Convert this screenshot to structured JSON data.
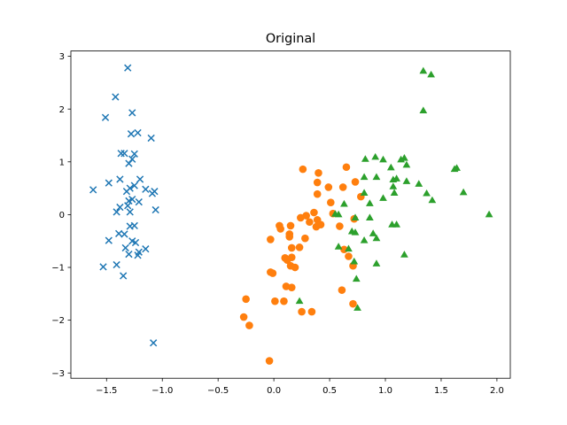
{
  "chart_data": {
    "type": "scatter",
    "title": "Original",
    "xlabel": "",
    "ylabel": "",
    "xlim": [
      -1.82,
      2.12
    ],
    "ylim": [
      -3.1,
      3.1
    ],
    "xticks": [
      -1.5,
      -1.0,
      -0.5,
      0.0,
      0.5,
      1.0,
      1.5,
      2.0
    ],
    "xtick_labels": [
      "−1.5",
      "−1.0",
      "−0.5",
      "0.0",
      "0.5",
      "1.0",
      "1.5",
      "2.0"
    ],
    "yticks": [
      -3,
      -2,
      -1,
      0,
      1,
      2,
      3
    ],
    "ytick_labels": [
      "−3",
      "−2",
      "−1",
      "0",
      "1",
      "2",
      "3"
    ],
    "grid": false,
    "series": [
      {
        "marker": "x",
        "color": "#1f77b4",
        "points": [
          [
            -1.31,
            2.78
          ],
          [
            -1.42,
            2.23
          ],
          [
            -1.27,
            1.93
          ],
          [
            -1.51,
            1.84
          ],
          [
            -1.28,
            1.53
          ],
          [
            -1.22,
            1.55
          ],
          [
            -1.1,
            1.45
          ],
          [
            -1.37,
            1.16
          ],
          [
            -1.34,
            1.16
          ],
          [
            -1.25,
            1.15
          ],
          [
            -1.27,
            1.05
          ],
          [
            -1.3,
            0.97
          ],
          [
            -1.2,
            0.67
          ],
          [
            -1.38,
            0.67
          ],
          [
            -1.48,
            0.6
          ],
          [
            -1.25,
            0.55
          ],
          [
            -1.29,
            0.5
          ],
          [
            -1.15,
            0.48
          ],
          [
            -1.32,
            0.44
          ],
          [
            -1.62,
            0.47
          ],
          [
            -1.07,
            0.44
          ],
          [
            -1.09,
            0.4
          ],
          [
            -1.27,
            0.29
          ],
          [
            -1.3,
            0.26
          ],
          [
            -1.21,
            0.24
          ],
          [
            -1.38,
            0.14
          ],
          [
            -1.31,
            0.17
          ],
          [
            -1.29,
            0.05
          ],
          [
            -1.41,
            0.05
          ],
          [
            -1.06,
            0.09
          ],
          [
            -1.25,
            -0.21
          ],
          [
            -1.29,
            -0.22
          ],
          [
            -1.39,
            -0.36
          ],
          [
            -1.34,
            -0.37
          ],
          [
            -1.48,
            -0.49
          ],
          [
            -1.27,
            -0.5
          ],
          [
            -1.24,
            -0.53
          ],
          [
            -1.33,
            -0.63
          ],
          [
            -1.15,
            -0.65
          ],
          [
            -1.21,
            -0.71
          ],
          [
            -1.3,
            -0.75
          ],
          [
            -1.22,
            -0.77
          ],
          [
            -1.41,
            -0.95
          ],
          [
            -1.53,
            -0.99
          ],
          [
            -1.35,
            -1.16
          ],
          [
            -1.08,
            -2.43
          ]
        ]
      },
      {
        "marker": "o",
        "color": "#ff7f0e",
        "points": [
          [
            0.65,
            0.9
          ],
          [
            0.26,
            0.86
          ],
          [
            0.4,
            0.79
          ],
          [
            0.39,
            0.61
          ],
          [
            0.49,
            0.52
          ],
          [
            0.62,
            0.52
          ],
          [
            0.73,
            0.62
          ],
          [
            0.39,
            0.39
          ],
          [
            0.78,
            0.34
          ],
          [
            0.51,
            0.23
          ],
          [
            0.36,
            0.04
          ],
          [
            0.29,
            -0.02
          ],
          [
            0.53,
            0.02
          ],
          [
            0.72,
            -0.08
          ],
          [
            0.24,
            -0.06
          ],
          [
            0.39,
            -0.1
          ],
          [
            0.32,
            -0.14
          ],
          [
            0.05,
            -0.21
          ],
          [
            0.15,
            -0.21
          ],
          [
            0.38,
            -0.23
          ],
          [
            0.42,
            -0.19
          ],
          [
            0.59,
            -0.22
          ],
          [
            0.06,
            -0.27
          ],
          [
            0.14,
            -0.37
          ],
          [
            0.28,
            -0.45
          ],
          [
            0.14,
            -0.42
          ],
          [
            -0.03,
            -0.47
          ],
          [
            0.16,
            -0.63
          ],
          [
            0.23,
            -0.62
          ],
          [
            0.63,
            -0.66
          ],
          [
            0.67,
            -0.79
          ],
          [
            0.16,
            -0.81
          ],
          [
            0.1,
            -0.82
          ],
          [
            0.12,
            -0.86
          ],
          [
            0.71,
            -0.97
          ],
          [
            0.15,
            -0.97
          ],
          [
            0.19,
            -1.0
          ],
          [
            -0.01,
            -1.11
          ],
          [
            -0.03,
            -1.09
          ],
          [
            0.11,
            -1.36
          ],
          [
            0.16,
            -1.38
          ],
          [
            0.61,
            -1.43
          ],
          [
            -0.25,
            -1.6
          ],
          [
            0.01,
            -1.64
          ],
          [
            0.09,
            -1.64
          ],
          [
            0.71,
            -1.69
          ],
          [
            -0.27,
            -1.94
          ],
          [
            0.25,
            -1.84
          ],
          [
            0.34,
            -1.84
          ],
          [
            -0.22,
            -2.1
          ],
          [
            -0.04,
            -2.77
          ]
        ]
      },
      {
        "marker": "^",
        "color": "#2ca02c",
        "points": [
          [
            1.34,
            2.72
          ],
          [
            1.41,
            2.65
          ],
          [
            1.34,
            1.97
          ],
          [
            0.91,
            1.09
          ],
          [
            0.98,
            1.04
          ],
          [
            1.14,
            1.04
          ],
          [
            1.17,
            1.07
          ],
          [
            0.82,
            1.05
          ],
          [
            1.05,
            0.89
          ],
          [
            1.19,
            0.94
          ],
          [
            1.62,
            0.86
          ],
          [
            1.64,
            0.88
          ],
          [
            0.81,
            0.71
          ],
          [
            0.92,
            0.71
          ],
          [
            1.07,
            0.66
          ],
          [
            1.1,
            0.68
          ],
          [
            1.19,
            0.63
          ],
          [
            1.3,
            0.58
          ],
          [
            1.07,
            0.53
          ],
          [
            1.08,
            0.41
          ],
          [
            1.37,
            0.4
          ],
          [
            0.81,
            0.41
          ],
          [
            1.7,
            0.42
          ],
          [
            0.98,
            0.31
          ],
          [
            1.42,
            0.27
          ],
          [
            0.86,
            0.21
          ],
          [
            0.63,
            0.2
          ],
          [
            0.55,
            0.01
          ],
          [
            0.58,
            0.0
          ],
          [
            1.93,
            0.0
          ],
          [
            0.86,
            -0.06
          ],
          [
            0.73,
            -0.06
          ],
          [
            1.06,
            -0.19
          ],
          [
            1.1,
            -0.19
          ],
          [
            0.7,
            -0.32
          ],
          [
            0.73,
            -0.34
          ],
          [
            0.89,
            -0.36
          ],
          [
            0.92,
            -0.45
          ],
          [
            0.81,
            -0.49
          ],
          [
            0.58,
            -0.61
          ],
          [
            0.67,
            -0.65
          ],
          [
            1.17,
            -0.76
          ],
          [
            0.72,
            -0.89
          ],
          [
            0.92,
            -0.93
          ],
          [
            0.74,
            -1.22
          ],
          [
            0.23,
            -1.64
          ],
          [
            0.75,
            -1.77
          ]
        ]
      }
    ]
  }
}
